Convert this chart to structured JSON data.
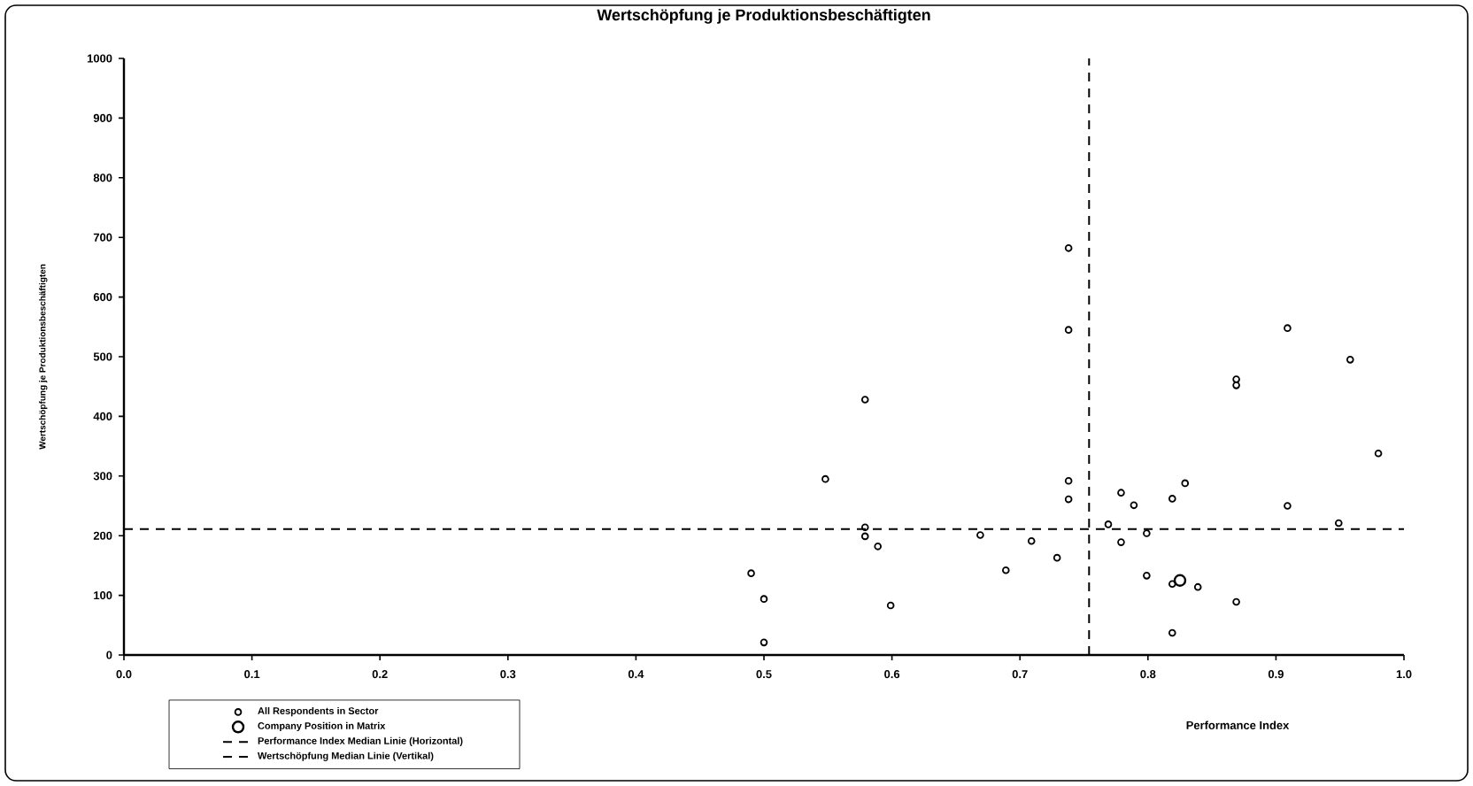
{
  "chart_data": {
    "type": "scatter",
    "title": "Wertschöpfung je Produktionsbeschäftigten",
    "xlabel": "Performance Index",
    "ylabel": "Wertschöpfung je Produktionsbeschäftigten",
    "xlim": [
      0,
      1
    ],
    "ylim": [
      0,
      1000
    ],
    "xticks": [
      {
        "value": 0,
        "label": "0.0"
      },
      {
        "value": 0.1,
        "label": "0.1"
      },
      {
        "value": 0.2,
        "label": "0.2"
      },
      {
        "value": 0.3,
        "label": "0.3"
      },
      {
        "value": 0.4,
        "label": "0.4"
      },
      {
        "value": 0.5,
        "label": "0.5"
      },
      {
        "value": 0.6,
        "label": "0.6"
      },
      {
        "value": 0.7,
        "label": "0.7"
      },
      {
        "value": 0.8,
        "label": "0.8"
      },
      {
        "value": 0.9,
        "label": "0.9"
      },
      {
        "value": 1,
        "label": "1.0"
      }
    ],
    "yticks": [
      0,
      100,
      200,
      300,
      400,
      500,
      600,
      700,
      800,
      900,
      1000
    ],
    "marker": "circle",
    "legend": "bottom left",
    "series": [
      {
        "name": "All Respondents in Sector",
        "color": "#000000",
        "x": [
          0.738,
          0.738,
          0.579,
          0.548,
          0.738,
          0.738,
          0.579,
          0.579,
          0.589,
          0.49,
          0.5,
          0.5,
          0.599,
          0.669,
          0.709,
          0.689,
          0.729,
          0.769,
          0.779,
          0.789,
          0.779,
          0.799,
          0.799,
          0.819,
          0.829,
          0.819,
          0.839,
          0.819,
          0.869,
          0.869,
          0.869,
          0.909,
          0.909,
          0.949,
          0.958,
          0.98
        ],
        "values": [
          682,
          545,
          428,
          295,
          292,
          261,
          214,
          199,
          182,
          137,
          94,
          21,
          83,
          201,
          191,
          142,
          163,
          219,
          272,
          251,
          189,
          204,
          133,
          262,
          288,
          119,
          114,
          37,
          89,
          462,
          452,
          548,
          250,
          221,
          495,
          338
        ]
      },
      {
        "name": "Company Position in Matrix",
        "color": "#000000",
        "x": [
          0.825
        ],
        "values": [
          125
        ]
      }
    ],
    "ref_lines": [
      {
        "axis": "y",
        "value": 211,
        "label": "Performance Index Median Linie (Horizontal)",
        "line_style": "dashed"
      },
      {
        "axis": "x",
        "value": 0.754,
        "label": "Wertschöpfung Median Linie (Vertikal)",
        "line_style": "dashed"
      }
    ]
  }
}
